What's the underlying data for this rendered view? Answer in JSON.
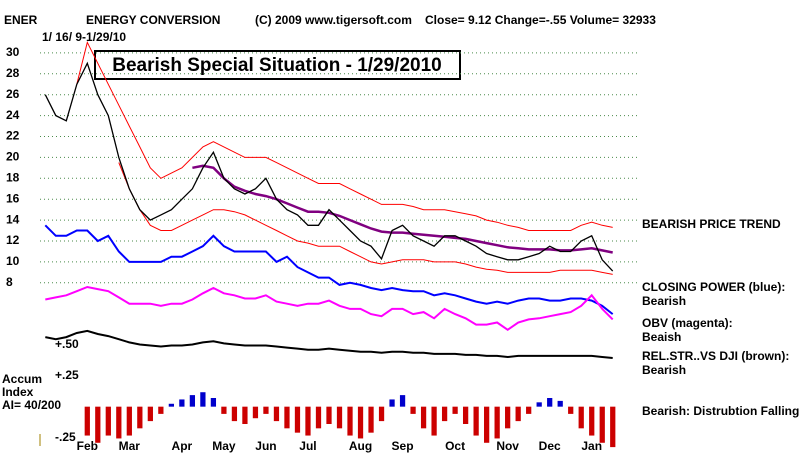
{
  "chart_data": [
    {
      "type": "line",
      "symbol": "ENER",
      "name": "ENERGY CONVERSION",
      "copyright": "(C) 2009 www.tigersoft.com",
      "quote": "Close=  9.12  Change=-.55 Volume=  32933",
      "date_range": "1/ 16/ 9-1/29/10",
      "title": "Bearish Special Situation - 1/29/2010",
      "annotations": [
        "BEARISH PRICE TREND",
        "CLOSING POWER (blue):",
        "Bearish",
        "OBV (magenta):",
        "Beaish",
        "REL.STR..VS DJI (brown):",
        "Bearish",
        "Bearish:  Distrubtion Falling."
      ],
      "categories": [
        null,
        null,
        null,
        null,
        "Feb",
        null,
        null,
        null,
        "Mar",
        null,
        null,
        null,
        null,
        "Apr",
        null,
        null,
        null,
        "May",
        null,
        null,
        null,
        "Jun",
        null,
        null,
        null,
        "Jul",
        null,
        null,
        null,
        null,
        "Aug",
        null,
        null,
        null,
        "Sep",
        null,
        null,
        null,
        null,
        "Oct",
        null,
        null,
        null,
        null,
        "Nov",
        null,
        null,
        null,
        "Dec",
        null,
        null,
        null,
        "Jan",
        null,
        null
      ],
      "ylim": [
        -8,
        32
      ],
      "yticks": [
        8,
        10,
        12,
        14,
        16,
        18,
        20,
        22,
        24,
        26,
        28,
        30
      ],
      "grid": true,
      "series": [
        {
          "color": "#ff0000",
          "values": [
            null,
            null,
            null,
            27,
            31,
            29,
            27,
            25,
            23,
            21,
            19,
            18,
            18.5,
            19,
            20,
            21,
            21.5,
            21,
            20.5,
            20,
            20,
            20,
            19.5,
            19,
            18.5,
            18,
            17.5,
            17.5,
            17.5,
            17,
            16.5,
            16,
            15.5,
            15.5,
            15.5,
            15.3,
            15,
            15,
            15,
            14.8,
            14.6,
            14.4,
            14,
            13.8,
            13.5,
            13.3,
            13,
            13,
            13,
            13,
            13,
            13.5,
            13.8,
            13.5,
            13.3
          ]
        },
        {
          "color": "#ff0000",
          "values": [
            null,
            null,
            null,
            null,
            null,
            null,
            null,
            19.5,
            17,
            15,
            13.5,
            13,
            13,
            13.5,
            14,
            14.5,
            15,
            15,
            14.8,
            14.5,
            14,
            13.5,
            13,
            12.5,
            12,
            11.8,
            11.5,
            11.5,
            11.5,
            11,
            10.5,
            10,
            9.8,
            10,
            10.2,
            10.2,
            10.2,
            10,
            10,
            10,
            9.8,
            9.5,
            9.3,
            9.2,
            9,
            9,
            9,
            9,
            9,
            9.2,
            9.2,
            9.2,
            9.2,
            9,
            8.8
          ]
        },
        {
          "color": "#800080",
          "values": [
            null,
            null,
            null,
            null,
            null,
            null,
            null,
            null,
            null,
            null,
            null,
            null,
            null,
            null,
            19,
            19.2,
            19,
            18,
            17.2,
            16.8,
            16.5,
            16.3,
            16,
            15.6,
            15.2,
            14.8,
            14.8,
            14.7,
            14.4,
            14,
            13.6,
            13.2,
            12.9,
            12.8,
            12.8,
            12.7,
            12.6,
            12.5,
            12.4,
            12.3,
            12.2,
            12,
            11.8,
            11.6,
            11.4,
            11.3,
            11.2,
            11.2,
            11.2,
            11.1,
            11.1,
            11.2,
            11.3,
            11.1,
            10.9
          ]
        },
        {
          "color": "#000000",
          "values": [
            26,
            24,
            23.5,
            27,
            29,
            26,
            24,
            20,
            17,
            15,
            14,
            14.5,
            15,
            16,
            17,
            19,
            20.5,
            18,
            17,
            16.5,
            17,
            18,
            16,
            15,
            14.5,
            13.5,
            13.5,
            15,
            14,
            13,
            12,
            11.5,
            10.3,
            13,
            13.5,
            12.5,
            12,
            11.5,
            12.5,
            12.5,
            12,
            11.5,
            10.8,
            10.5,
            10.2,
            10.2,
            10.5,
            10.8,
            11.5,
            11,
            11,
            12,
            12.5,
            10.2,
            9.12
          ]
        },
        {
          "color": "#0000ff",
          "values": [
            13.5,
            12.5,
            12.5,
            13,
            13,
            12,
            12.5,
            11,
            10,
            10,
            10,
            10,
            10.5,
            10.5,
            11,
            11.5,
            12.5,
            11.5,
            11,
            11,
            11,
            11,
            10,
            10.5,
            9.5,
            9,
            8.5,
            8.5,
            7.8,
            8,
            7.8,
            7.5,
            7.3,
            7.5,
            7.3,
            7.2,
            7.2,
            6.8,
            7,
            6.8,
            6.5,
            6.2,
            6,
            6.2,
            6,
            6.3,
            6.5,
            6.5,
            6.3,
            6.3,
            6.5,
            6.5,
            6.3,
            5.8,
            5
          ]
        },
        {
          "color": "#ff00ff",
          "values": [
            6.4,
            6.6,
            6.8,
            7.2,
            7.6,
            7.4,
            7.2,
            6.6,
            6,
            6,
            6,
            5.8,
            6,
            6,
            6.4,
            7,
            7.5,
            7,
            6.8,
            6.5,
            6.5,
            6.8,
            6.2,
            6,
            5.8,
            6,
            6,
            6.3,
            5.8,
            5.5,
            5.5,
            5,
            4.8,
            5.5,
            5.5,
            5,
            5.2,
            4.6,
            5.5,
            5,
            4.6,
            4,
            4,
            4.2,
            3.5,
            4.2,
            4.5,
            4.6,
            4.8,
            5,
            5.2,
            5.8,
            6.8,
            5.5,
            4.5
          ]
        },
        {
          "color": "#000000",
          "values": [
            2.8,
            2.6,
            2.8,
            3.2,
            3.4,
            3.1,
            2.9,
            2.6,
            2.3,
            2.1,
            2,
            1.9,
            2,
            2,
            2.1,
            2.3,
            2.4,
            2.2,
            2.1,
            2,
            2,
            2,
            1.9,
            1.8,
            1.7,
            1.6,
            1.6,
            1.7,
            1.6,
            1.5,
            1.4,
            1.4,
            1.3,
            1.4,
            1.4,
            1.3,
            1.3,
            1.2,
            1.2,
            1.2,
            1.1,
            1.1,
            1,
            1,
            0.9,
            1,
            1,
            1,
            1,
            1,
            1,
            1,
            1,
            0.9,
            0.8
          ]
        }
      ]
    },
    {
      "type": "bar",
      "label_lines": [
        "Accum",
        "Index",
        "AI= 40/200"
      ],
      "annotations": [
        "+.50",
        "+.25",
        "-.25"
      ],
      "ylim": [
        -0.3,
        0.15
      ],
      "positive_color": "#0000cc",
      "negative_color": "#cc0000",
      "values": [
        null,
        null,
        null,
        null,
        -0.2,
        -0.25,
        -0.2,
        -0.22,
        -0.2,
        -0.15,
        -0.1,
        -0.05,
        0.02,
        0.05,
        0.08,
        0.1,
        0.06,
        -0.05,
        -0.1,
        -0.12,
        -0.08,
        -0.05,
        -0.1,
        -0.15,
        -0.18,
        -0.2,
        -0.15,
        -0.12,
        -0.15,
        -0.2,
        -0.22,
        -0.18,
        -0.1,
        0.05,
        0.08,
        -0.05,
        -0.15,
        -0.2,
        -0.1,
        -0.05,
        -0.12,
        -0.2,
        -0.25,
        -0.22,
        -0.15,
        -0.1,
        -0.05,
        0.03,
        0.06,
        0.04,
        -0.05,
        -0.15,
        -0.2,
        -0.25,
        -0.28
      ]
    }
  ]
}
